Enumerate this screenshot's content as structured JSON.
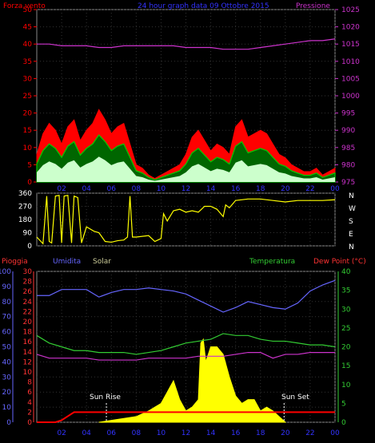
{
  "panel1": {
    "title": "24 hour graph data  09 Ottobre 2015",
    "left_label": "Forza vento",
    "right_label": "Pressione",
    "left_ticks": [
      "0",
      "5",
      "10",
      "15",
      "20",
      "25",
      "30",
      "35",
      "40",
      "45",
      "50"
    ],
    "right_ticks": [
      "975",
      "980",
      "985",
      "990",
      "995",
      "1000",
      "1005",
      "1010",
      "1015",
      "1020",
      "1025"
    ]
  },
  "panel2": {
    "left_ticks": [
      "0",
      "90",
      "180",
      "270",
      "360"
    ],
    "right_labels": [
      "N",
      "W",
      "S",
      "E",
      "N"
    ]
  },
  "panel3": {
    "label_rain": "Pioggia",
    "label_humidity": "Umidita",
    "label_solar": "Solar",
    "label_temp": "Temperatura",
    "label_dew": "Dew Point (°C)",
    "humidity_ticks": [
      "0",
      "10",
      "20",
      "30",
      "40",
      "50",
      "60",
      "70",
      "80",
      "90",
      "100"
    ],
    "rain_ticks": [
      "0",
      "2",
      "4",
      "6",
      "8",
      "10",
      "12",
      "14",
      "16",
      "18",
      "20",
      "22",
      "24",
      "26",
      "28",
      "30"
    ],
    "temp_ticks": [
      "0",
      "5",
      "10",
      "15",
      "20",
      "25",
      "30",
      "35",
      "40"
    ],
    "sunrise_label": "Sun Rise",
    "sunset_label": "Sun Set"
  },
  "x_ticks": [
    "02",
    "04",
    "06",
    "08",
    "10",
    "12",
    "14",
    "16",
    "18",
    "20",
    "22",
    "00"
  ],
  "colors": {
    "wind_gust": "#ff0000",
    "wind_avg": "#00cc00",
    "wind_low": "#ccffcc",
    "pressure": "#cc33cc",
    "direction": "#ffff00",
    "humidity": "#6666ff",
    "temperature": "#33cc33",
    "dewpoint": "#cc33cc",
    "solar": "#ffff00",
    "rain": "#ff0000"
  },
  "chart_data": [
    {
      "type": "area",
      "x_unit": "hour",
      "xlim": [
        0,
        24
      ],
      "ylim": [
        0,
        50
      ],
      "y2lim": [
        975,
        1025
      ],
      "series": [
        {
          "name": "Forza vento",
          "axis": "left",
          "x": [
            0,
            0.5,
            1,
            1.5,
            2,
            2.5,
            3,
            3.5,
            4,
            4.5,
            5,
            5.5,
            6,
            6.5,
            7,
            7.5,
            8,
            8.5,
            9,
            9.5,
            10,
            10.5,
            11,
            11.5,
            12,
            12.5,
            13,
            13.5,
            14,
            14.5,
            15,
            15.5,
            16,
            16.5,
            17,
            17.5,
            18,
            18.5,
            19,
            19.5,
            20,
            20.5,
            21,
            21.5,
            22,
            22.5,
            23,
            23.5,
            24
          ],
          "values": [
            8,
            14,
            17,
            15,
            11,
            16,
            18,
            12,
            15,
            17,
            21,
            18,
            14,
            16,
            17,
            11,
            5,
            4,
            2,
            1,
            2,
            3,
            4,
            5,
            8,
            13,
            15,
            12,
            9,
            11,
            10,
            8,
            16,
            18,
            13,
            14,
            15,
            14,
            11,
            8,
            7,
            5,
            4,
            3,
            3,
            4,
            2,
            3,
            4
          ]
        },
        {
          "name": "Pressione",
          "axis": "right",
          "x": [
            0,
            1,
            2,
            3,
            4,
            5,
            6,
            7,
            8,
            9,
            10,
            11,
            12,
            13,
            14,
            15,
            16,
            17,
            18,
            19,
            20,
            21,
            22,
            23,
            24
          ],
          "values": [
            1015,
            1015,
            1014.5,
            1014.5,
            1014.5,
            1014,
            1014,
            1014.5,
            1014.5,
            1014.5,
            1014.5,
            1014.5,
            1014,
            1014,
            1014,
            1013.5,
            1013.5,
            1013.5,
            1014,
            1014.5,
            1015,
            1015.5,
            1016,
            1016,
            1016.5
          ]
        }
      ]
    },
    {
      "type": "line",
      "x_unit": "hour",
      "xlim": [
        0,
        24
      ],
      "ylim": [
        0,
        360
      ],
      "series": [
        {
          "name": "direction",
          "x": [
            0,
            0.5,
            0.8,
            1,
            1.2,
            1.5,
            1.8,
            2,
            2.2,
            2.5,
            2.8,
            3,
            3.3,
            3.6,
            4,
            4.2,
            4.6,
            5,
            5.5,
            6,
            6.5,
            7,
            7.3,
            7.5,
            7.7,
            8,
            9,
            9.5,
            10,
            10.2,
            10.5,
            11,
            11.5,
            12,
            12.5,
            13,
            13.5,
            14,
            14.5,
            15,
            15.2,
            15.5,
            16,
            17,
            18,
            19,
            20,
            21,
            22,
            23,
            24
          ],
          "values": [
            60,
            15,
            340,
            30,
            20,
            340,
            345,
            20,
            340,
            345,
            20,
            340,
            330,
            20,
            130,
            120,
            100,
            90,
            30,
            25,
            35,
            40,
            60,
            340,
            60,
            60,
            70,
            30,
            50,
            220,
            170,
            240,
            250,
            230,
            240,
            230,
            270,
            270,
            250,
            200,
            280,
            260,
            310,
            320,
            320,
            310,
            300,
            310,
            310,
            310,
            315
          ]
        }
      ]
    },
    {
      "type": "line",
      "x_unit": "hour",
      "xlim": [
        0,
        24
      ],
      "ylim": [
        0,
        100
      ],
      "series": [
        {
          "name": "Umidita",
          "axis": "left",
          "x": [
            0,
            1,
            2,
            3,
            4,
            5,
            6,
            7,
            8,
            9,
            10,
            11,
            12,
            13,
            14,
            15,
            16,
            17,
            18,
            19,
            20,
            21,
            22,
            23,
            24
          ],
          "values": [
            84,
            84,
            88,
            88,
            88,
            83,
            86,
            88,
            88,
            89,
            88,
            87,
            85,
            81,
            77,
            73,
            76,
            80,
            78,
            76,
            75,
            79,
            87,
            91,
            94
          ]
        },
        {
          "name": "Temperatura",
          "axis": "right",
          "x": [
            0,
            1,
            2,
            3,
            4,
            5,
            6,
            7,
            8,
            9,
            10,
            11,
            12,
            13,
            14,
            15,
            16,
            17,
            18,
            19,
            20,
            21,
            22,
            23,
            24
          ],
          "values": [
            23,
            21,
            20,
            19,
            19,
            18.5,
            18.5,
            18.5,
            18,
            18.5,
            19,
            20,
            21,
            21.5,
            22,
            23.5,
            23,
            23,
            22,
            21.5,
            21.5,
            21,
            20.5,
            20.5,
            20
          ]
        },
        {
          "name": "Dew Point (°C)",
          "axis": "right",
          "x": [
            0,
            1,
            2,
            3,
            4,
            5,
            6,
            7,
            8,
            9,
            10,
            11,
            12,
            13,
            14,
            15,
            16,
            17,
            18,
            19,
            20,
            21,
            22,
            23,
            24
          ],
          "values": [
            18,
            17,
            17,
            17,
            17,
            16.5,
            16.5,
            16.5,
            16.5,
            17,
            17,
            17,
            17,
            17.5,
            17.5,
            17.5,
            18,
            18.5,
            18.5,
            17,
            18,
            18,
            18.5,
            18.5,
            18.5
          ]
        },
        {
          "name": "Solar",
          "axis": "right",
          "x": [
            5,
            6,
            7,
            8,
            9,
            10,
            10.5,
            11,
            11.5,
            12,
            12.5,
            13,
            13.2,
            13.4,
            13.6,
            14,
            14.5,
            15,
            15.5,
            16,
            16.5,
            17,
            17.5,
            18,
            18.5,
            19,
            20
          ],
          "values": [
            0,
            0.5,
            1,
            1.5,
            3,
            5,
            8,
            11,
            6,
            3,
            4,
            6,
            21,
            22,
            16,
            20,
            20,
            18,
            12,
            7,
            5,
            6,
            6,
            3,
            4,
            3,
            0
          ]
        },
        {
          "name": "Pioggia",
          "axis": "rain",
          "x": [
            0,
            1.5,
            2,
            2.5,
            3,
            24
          ],
          "values": [
            0,
            0,
            0.4,
            1.2,
            2,
            2
          ]
        }
      ]
    }
  ]
}
